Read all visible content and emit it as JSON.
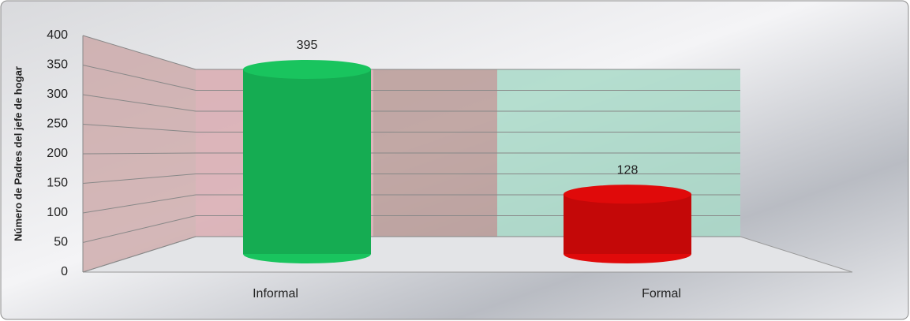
{
  "chart_data": {
    "type": "bar3d",
    "y_label": "Número de Padres del jefe de hogar",
    "categories": [
      "Informal",
      "Formal"
    ],
    "values": [
      395,
      128
    ],
    "colors": [
      "#19c45e",
      "#e00a0a"
    ],
    "ylim": [
      0,
      400
    ],
    "yticks": [
      0,
      50,
      100,
      150,
      200,
      250,
      300,
      350,
      400
    ],
    "grid": true
  }
}
